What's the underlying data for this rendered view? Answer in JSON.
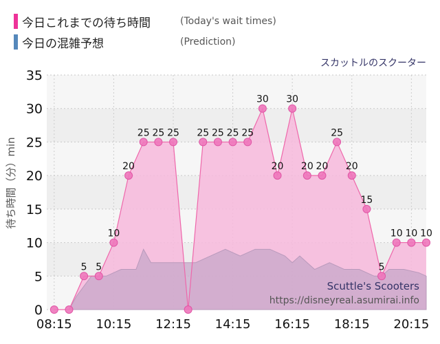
{
  "legend": [
    {
      "label": "今日これまでの待ち時間",
      "note": "(Today's wait times)",
      "color": "#ee3399"
    },
    {
      "label": "今日の混雑予想",
      "note": "(Prediction)",
      "color": "#5588bb"
    }
  ],
  "colors": {
    "today_line": "#ee66aa",
    "today_fill": "#f7b9dc",
    "today_marker": "#ee77bb",
    "prediction_fill": "#c7a7c9"
  },
  "chart_data": {
    "type": "area",
    "title": "スカットルのスクーター",
    "watermark": [
      "Scuttle's Scooters",
      "https://disneyreal.asumirai.info"
    ],
    "ylabel": "待ち時間（分）min",
    "xlabel": "",
    "ylim": [
      0,
      35
    ],
    "yticks": [
      0,
      5,
      10,
      15,
      20,
      25,
      30,
      35
    ],
    "xlim": [
      "08:00",
      "20:45"
    ],
    "xticks": [
      "08:15",
      "10:15",
      "12:15",
      "14:15",
      "16:15",
      "18:15",
      "20:15"
    ],
    "grid": true,
    "series": [
      {
        "name": "今日これまでの待ち時間",
        "x": [
          "08:15",
          "08:30",
          "08:45",
          "09:15",
          "09:45",
          "10:15",
          "10:45",
          "11:15",
          "11:45",
          "12:15",
          "12:30",
          "12:45",
          "13:15",
          "13:45",
          "14:15",
          "14:45",
          "15:15",
          "15:45",
          "16:15",
          "16:45",
          "17:15",
          "17:45",
          "18:15",
          "18:45",
          "19:15",
          "19:45",
          "20:15",
          "20:45"
        ],
        "values": [
          0,
          null,
          0,
          5,
          5,
          10,
          20,
          25,
          25,
          25,
          null,
          0,
          25,
          25,
          25,
          25,
          30,
          20,
          30,
          20,
          20,
          25,
          20,
          15,
          5,
          10,
          10,
          10
        ],
        "labeled": [
          false,
          false,
          false,
          true,
          true,
          true,
          true,
          true,
          true,
          true,
          false,
          false,
          true,
          true,
          true,
          true,
          true,
          true,
          true,
          true,
          true,
          true,
          true,
          true,
          true,
          true,
          true,
          true
        ]
      },
      {
        "name": "今日の混雑予想",
        "x": [
          "08:15",
          "08:45",
          "09:00",
          "09:30",
          "10:00",
          "10:30",
          "11:00",
          "11:15",
          "11:30",
          "12:00",
          "12:30",
          "12:45",
          "13:00",
          "13:30",
          "14:00",
          "14:30",
          "15:00",
          "15:30",
          "16:00",
          "16:15",
          "16:30",
          "17:00",
          "17:30",
          "18:00",
          "18:30",
          "19:00",
          "19:15",
          "19:30",
          "20:00",
          "20:30",
          "20:45"
        ],
        "values": [
          0,
          0,
          2,
          5,
          5,
          6,
          6,
          9,
          7,
          7,
          7,
          7,
          7,
          8,
          9,
          8,
          9,
          9,
          8,
          7,
          8,
          6,
          7,
          6,
          6,
          5,
          5,
          6,
          6,
          5.5,
          5
        ]
      }
    ]
  }
}
